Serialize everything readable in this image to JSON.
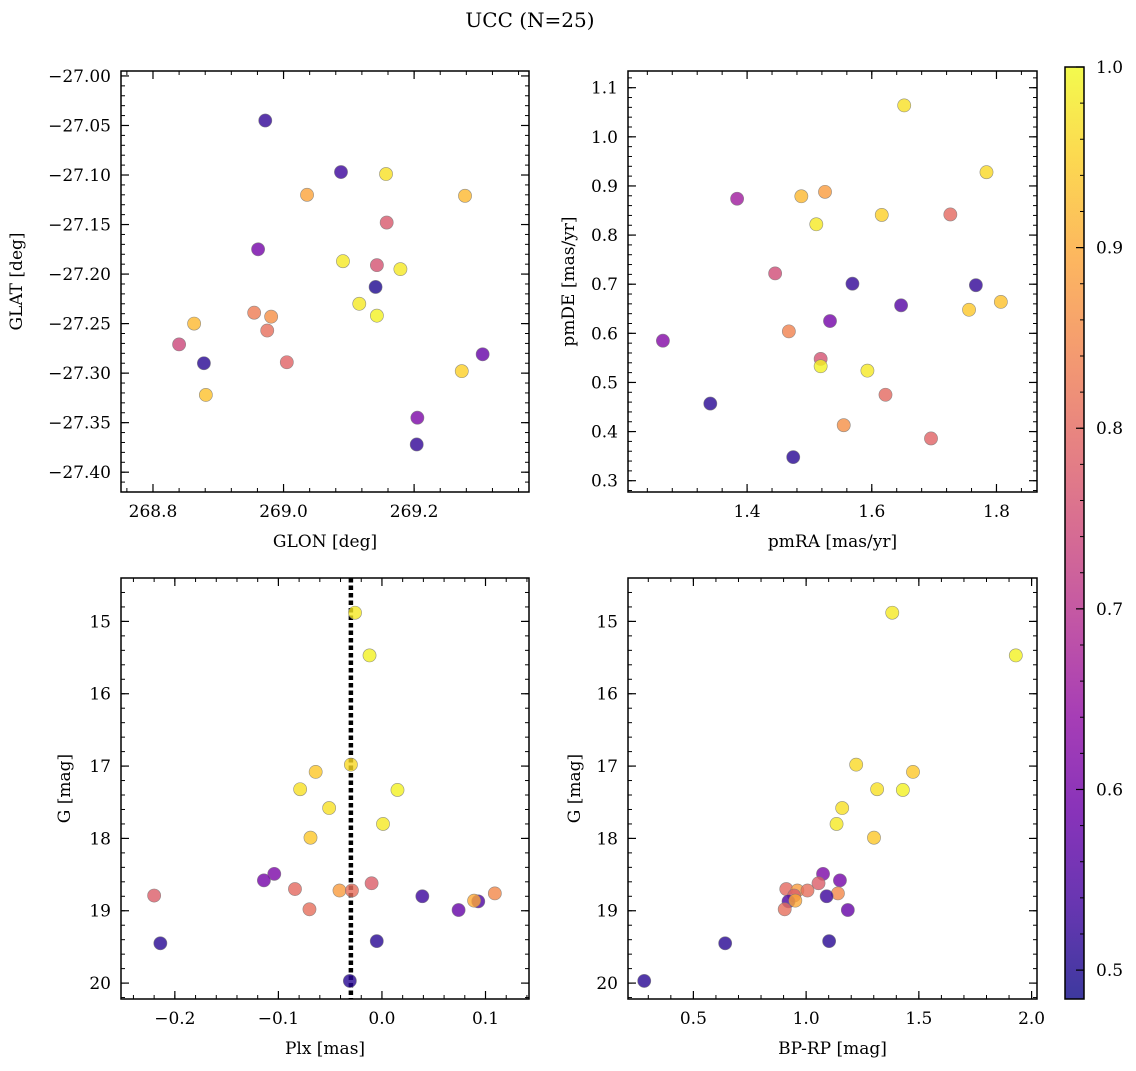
{
  "chart_data": {
    "title": "UCC (N=25)",
    "colorbar": {
      "range": [
        0.484,
        1.0
      ],
      "ticks": [
        0.5,
        0.6,
        0.7,
        0.8,
        0.9,
        1.0
      ],
      "tick_labels": [
        "0.5",
        "0.6",
        "0.7",
        "0.8",
        "0.9",
        "1.0"
      ],
      "colormap": "plasma",
      "alpha": 0.8
    },
    "panels": [
      {
        "id": "glon-glat",
        "type": "scatter",
        "xlabel": "GLON [deg]",
        "ylabel": "GLAT [deg]",
        "xlim": [
          268.751,
          269.376
        ],
        "ylim": [
          -27.42,
          -26.995
        ],
        "y_inverted": false,
        "xticks": [
          268.8,
          269.0,
          269.2
        ],
        "xtick_labels": [
          "268.8",
          "269.0",
          "269.2"
        ],
        "yticks": [
          -27.0,
          -27.05,
          -27.1,
          -27.15,
          -27.2,
          -27.25,
          -27.3,
          -27.35,
          -27.4
        ],
        "ytick_labels": [
          "−27.00",
          "−27.05",
          "−27.10",
          "−27.15",
          "−27.20",
          "−27.25",
          "−27.30",
          "−27.35",
          "−27.40"
        ],
        "points": [
          {
            "x": 268.972,
            "y": -27.045,
            "c": 0.52
          },
          {
            "x": 269.088,
            "y": -27.097,
            "c": 0.53
          },
          {
            "x": 269.157,
            "y": -27.099,
            "c": 0.97
          },
          {
            "x": 269.036,
            "y": -27.12,
            "c": 0.89
          },
          {
            "x": 269.278,
            "y": -27.121,
            "c": 0.92
          },
          {
            "x": 269.158,
            "y": -27.148,
            "c": 0.77
          },
          {
            "x": 268.961,
            "y": -27.175,
            "c": 0.6
          },
          {
            "x": 269.091,
            "y": -27.187,
            "c": 0.98
          },
          {
            "x": 269.143,
            "y": -27.191,
            "c": 0.76
          },
          {
            "x": 269.179,
            "y": -27.195,
            "c": 0.98
          },
          {
            "x": 269.141,
            "y": -27.213,
            "c": 0.5
          },
          {
            "x": 269.116,
            "y": -27.23,
            "c": 0.98
          },
          {
            "x": 268.955,
            "y": -27.239,
            "c": 0.83
          },
          {
            "x": 268.981,
            "y": -27.243,
            "c": 0.86
          },
          {
            "x": 269.143,
            "y": -27.242,
            "c": 0.99
          },
          {
            "x": 268.863,
            "y": -27.25,
            "c": 0.92
          },
          {
            "x": 268.975,
            "y": -27.257,
            "c": 0.81
          },
          {
            "x": 268.84,
            "y": -27.271,
            "c": 0.74
          },
          {
            "x": 269.305,
            "y": -27.281,
            "c": 0.58
          },
          {
            "x": 268.878,
            "y": -27.29,
            "c": 0.51
          },
          {
            "x": 269.005,
            "y": -27.289,
            "c": 0.79
          },
          {
            "x": 269.273,
            "y": -27.298,
            "c": 0.95
          },
          {
            "x": 268.881,
            "y": -27.322,
            "c": 0.93
          },
          {
            "x": 269.205,
            "y": -27.345,
            "c": 0.61
          },
          {
            "x": 269.204,
            "y": -27.372,
            "c": 0.52
          }
        ]
      },
      {
        "id": "pm",
        "type": "scatter",
        "xlabel": "pmRA [mas/yr]",
        "ylabel": "pmDE [mas/yr]",
        "xlim": [
          1.209,
          1.865
        ],
        "ylim": [
          0.277,
          1.134
        ],
        "y_inverted": false,
        "xticks": [
          1.4,
          1.6,
          1.8
        ],
        "xtick_labels": [
          "1.4",
          "1.6",
          "1.8"
        ],
        "yticks": [
          0.3,
          0.4,
          0.5,
          0.6,
          0.7,
          0.8,
          0.9,
          1.0,
          1.1
        ],
        "ytick_labels": [
          "0.3",
          "0.4",
          "0.5",
          "0.6",
          "0.7",
          "0.8",
          "0.9",
          "1.0",
          "1.1"
        ],
        "points": [
          {
            "x": 1.652,
            "y": 1.064,
            "c": 0.97
          },
          {
            "x": 1.784,
            "y": 0.928,
            "c": 0.96
          },
          {
            "x": 1.525,
            "y": 0.888,
            "c": 0.88
          },
          {
            "x": 1.487,
            "y": 0.879,
            "c": 0.92
          },
          {
            "x": 1.384,
            "y": 0.874,
            "c": 0.66
          },
          {
            "x": 1.616,
            "y": 0.841,
            "c": 0.95
          },
          {
            "x": 1.726,
            "y": 0.842,
            "c": 0.8
          },
          {
            "x": 1.511,
            "y": 0.822,
            "c": 0.98
          },
          {
            "x": 1.445,
            "y": 0.722,
            "c": 0.75
          },
          {
            "x": 1.569,
            "y": 0.701,
            "c": 0.52
          },
          {
            "x": 1.767,
            "y": 0.698,
            "c": 0.52
          },
          {
            "x": 1.807,
            "y": 0.664,
            "c": 0.93
          },
          {
            "x": 1.647,
            "y": 0.657,
            "c": 0.56
          },
          {
            "x": 1.756,
            "y": 0.648,
            "c": 0.94
          },
          {
            "x": 1.533,
            "y": 0.625,
            "c": 0.6
          },
          {
            "x": 1.467,
            "y": 0.604,
            "c": 0.84
          },
          {
            "x": 1.265,
            "y": 0.585,
            "c": 0.62
          },
          {
            "x": 1.518,
            "y": 0.548,
            "c": 0.76
          },
          {
            "x": 1.518,
            "y": 0.533,
            "c": 0.99
          },
          {
            "x": 1.593,
            "y": 0.524,
            "c": 0.98
          },
          {
            "x": 1.622,
            "y": 0.475,
            "c": 0.8
          },
          {
            "x": 1.341,
            "y": 0.457,
            "c": 0.51
          },
          {
            "x": 1.555,
            "y": 0.413,
            "c": 0.86
          },
          {
            "x": 1.695,
            "y": 0.386,
            "c": 0.79
          },
          {
            "x": 1.474,
            "y": 0.348,
            "c": 0.51
          }
        ]
      },
      {
        "id": "plx-g",
        "type": "scatter",
        "xlabel": "Plx [mas]",
        "ylabel": "G [mag]",
        "xlim": [
          -0.252,
          0.142
        ],
        "ylim": [
          20.22,
          14.4
        ],
        "y_inverted": true,
        "xticks": [
          -0.2,
          -0.1,
          0.0,
          0.1
        ],
        "xtick_labels": [
          "−0.2",
          "−0.1",
          "0.0",
          "0.1"
        ],
        "yticks": [
          15,
          16,
          17,
          18,
          19,
          20
        ],
        "ytick_labels": [
          "15",
          "16",
          "17",
          "18",
          "19",
          "20"
        ],
        "vline": {
          "x": -0.03,
          "style": "dotted"
        },
        "points": [
          {
            "x": -0.026,
            "y": 14.88,
            "c": 0.98
          },
          {
            "x": -0.012,
            "y": 15.47,
            "c": 0.99
          },
          {
            "x": -0.03,
            "y": 16.98,
            "c": 0.96
          },
          {
            "x": -0.064,
            "y": 17.08,
            "c": 0.94
          },
          {
            "x": -0.079,
            "y": 17.32,
            "c": 0.97
          },
          {
            "x": 0.015,
            "y": 17.33,
            "c": 0.99
          },
          {
            "x": -0.051,
            "y": 17.58,
            "c": 0.97
          },
          {
            "x": 0.001,
            "y": 17.8,
            "c": 0.98
          },
          {
            "x": -0.069,
            "y": 17.99,
            "c": 0.94
          },
          {
            "x": -0.104,
            "y": 18.49,
            "c": 0.61
          },
          {
            "x": -0.114,
            "y": 18.58,
            "c": 0.6
          },
          {
            "x": -0.01,
            "y": 18.62,
            "c": 0.78
          },
          {
            "x": -0.084,
            "y": 18.7,
            "c": 0.8
          },
          {
            "x": -0.041,
            "y": 18.72,
            "c": 0.88
          },
          {
            "x": -0.029,
            "y": 18.72,
            "c": 0.81
          },
          {
            "x": 0.109,
            "y": 18.76,
            "c": 0.85
          },
          {
            "x": -0.22,
            "y": 18.79,
            "c": 0.78
          },
          {
            "x": 0.039,
            "y": 18.8,
            "c": 0.53
          },
          {
            "x": 0.093,
            "y": 18.87,
            "c": 0.55
          },
          {
            "x": 0.089,
            "y": 18.86,
            "c": 0.9
          },
          {
            "x": -0.07,
            "y": 18.98,
            "c": 0.81
          },
          {
            "x": 0.074,
            "y": 18.99,
            "c": 0.58
          },
          {
            "x": -0.005,
            "y": 19.42,
            "c": 0.51
          },
          {
            "x": -0.214,
            "y": 19.45,
            "c": 0.51
          },
          {
            "x": -0.031,
            "y": 19.97,
            "c": 0.51
          }
        ]
      },
      {
        "id": "cmd",
        "type": "scatter",
        "xlabel": "BP-RP [mag]",
        "ylabel": "G [mag]",
        "xlim": [
          0.21,
          2.024
        ],
        "ylim": [
          20.22,
          14.4
        ],
        "y_inverted": true,
        "xticks": [
          0.5,
          1.0,
          1.5,
          2.0
        ],
        "xtick_labels": [
          "0.5",
          "1.0",
          "1.5",
          "2.0"
        ],
        "yticks": [
          15,
          16,
          17,
          18,
          19,
          20
        ],
        "ytick_labels": [
          "15",
          "16",
          "17",
          "18",
          "19",
          "20"
        ],
        "points": [
          {
            "x": 1.382,
            "y": 14.88,
            "c": 0.98
          },
          {
            "x": 1.93,
            "y": 15.47,
            "c": 0.99
          },
          {
            "x": 1.222,
            "y": 16.98,
            "c": 0.96
          },
          {
            "x": 1.474,
            "y": 17.08,
            "c": 0.94
          },
          {
            "x": 1.315,
            "y": 17.32,
            "c": 0.97
          },
          {
            "x": 1.429,
            "y": 17.33,
            "c": 0.99
          },
          {
            "x": 1.16,
            "y": 17.58,
            "c": 0.97
          },
          {
            "x": 1.135,
            "y": 17.8,
            "c": 0.98
          },
          {
            "x": 1.301,
            "y": 17.99,
            "c": 0.94
          },
          {
            "x": 1.075,
            "y": 18.49,
            "c": 0.61
          },
          {
            "x": 1.15,
            "y": 18.58,
            "c": 0.6
          },
          {
            "x": 1.055,
            "y": 18.62,
            "c": 0.78
          },
          {
            "x": 0.912,
            "y": 18.7,
            "c": 0.8
          },
          {
            "x": 0.961,
            "y": 18.72,
            "c": 0.88
          },
          {
            "x": 1.006,
            "y": 18.72,
            "c": 0.81
          },
          {
            "x": 1.141,
            "y": 18.76,
            "c": 0.85
          },
          {
            "x": 0.947,
            "y": 18.79,
            "c": 0.78
          },
          {
            "x": 1.091,
            "y": 18.8,
            "c": 0.53
          },
          {
            "x": 0.922,
            "y": 18.87,
            "c": 0.55
          },
          {
            "x": 0.952,
            "y": 18.86,
            "c": 0.9
          },
          {
            "x": 0.905,
            "y": 18.98,
            "c": 0.81
          },
          {
            "x": 1.185,
            "y": 18.99,
            "c": 0.58
          },
          {
            "x": 1.102,
            "y": 19.42,
            "c": 0.51
          },
          {
            "x": 0.641,
            "y": 19.45,
            "c": 0.51
          },
          {
            "x": 0.282,
            "y": 19.97,
            "c": 0.51
          }
        ]
      }
    ]
  }
}
